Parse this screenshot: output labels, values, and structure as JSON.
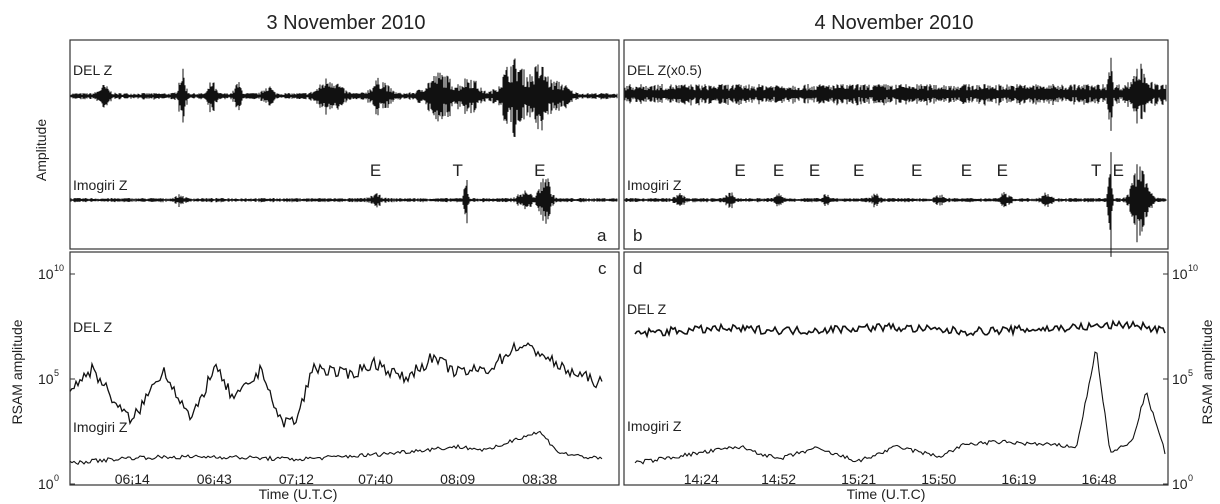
{
  "chart_data": [
    {
      "panel": "a",
      "type": "line",
      "title": "3 November 2010",
      "ylabel": "Amplitude",
      "series": [
        {
          "name": "DEL Z"
        },
        {
          "name": "Imogiri Z"
        }
      ],
      "annotations": [
        {
          "label": "E",
          "time": "07:40"
        },
        {
          "label": "T",
          "time": "08:09"
        },
        {
          "label": "E",
          "time": "08:38"
        }
      ],
      "panel_label": "a"
    },
    {
      "panel": "b",
      "type": "line",
      "title": "4 November 2010",
      "series": [
        {
          "name": "DEL Z(x0.5)"
        },
        {
          "name": "Imogiri Z"
        }
      ],
      "annotations": [
        {
          "label": "E",
          "time": "14:38"
        },
        {
          "label": "E",
          "time": "14:52"
        },
        {
          "label": "E",
          "time": "15:05"
        },
        {
          "label": "E",
          "time": "15:21"
        },
        {
          "label": "E",
          "time": "15:42"
        },
        {
          "label": "E",
          "time": "16:00"
        },
        {
          "label": "E",
          "time": "16:13"
        },
        {
          "label": "T",
          "time": "16:47"
        },
        {
          "label": "E",
          "time": "16:55"
        }
      ],
      "panel_label": "b"
    },
    {
      "panel": "c",
      "type": "line",
      "xlabel": "Time (U.T.C)",
      "ylabel": "RSAM amplitude",
      "yscale": "log",
      "ylim": [
        1,
        10000000000
      ],
      "x_ticks": [
        "06:14",
        "06:43",
        "07:12",
        "07:40",
        "08:09",
        "08:38"
      ],
      "y_ticks": [
        {
          "base": "10",
          "exp": "0",
          "value": 1
        },
        {
          "base": "10",
          "exp": "5",
          "value": 100000
        },
        {
          "base": "10",
          "exp": "10",
          "value": 10000000000
        }
      ],
      "series": [
        {
          "name": "DEL Z",
          "x": [
            "05:52",
            "06:00",
            "06:10",
            "06:14",
            "06:25",
            "06:35",
            "06:43",
            "06:50",
            "07:00",
            "07:06",
            "07:12",
            "07:18",
            "07:30",
            "07:40",
            "07:50",
            "08:00",
            "08:09",
            "08:20",
            "08:30",
            "08:38",
            "08:45",
            "09:00"
          ],
          "values": [
            31000,
            310000,
            3100,
            1000,
            300000,
            1000,
            400000,
            10000,
            300000,
            1000,
            1000,
            400000,
            150000,
            600000,
            100000,
            1000000,
            200000,
            300000,
            4000000,
            2000000,
            350000,
            60000
          ]
        },
        {
          "name": "Imogiri Z",
          "x": [
            "05:52",
            "06:14",
            "06:43",
            "07:12",
            "07:40",
            "08:09",
            "08:20",
            "08:30",
            "08:38",
            "08:45",
            "09:00"
          ],
          "values": [
            10,
            18,
            20,
            15,
            25,
            60,
            40,
            150,
            300,
            30,
            15
          ]
        }
      ],
      "panel_label": "c"
    },
    {
      "panel": "d",
      "type": "line",
      "xlabel": "Time (U.T.C)",
      "ylabel": "RSAM amplitude",
      "yscale": "log",
      "ylim": [
        1,
        10000000000
      ],
      "x_ticks": [
        "14:24",
        "14:52",
        "15:21",
        "15:50",
        "16:19",
        "16:48"
      ],
      "y_ticks": [
        {
          "base": "10",
          "exp": "0",
          "value": 1
        },
        {
          "base": "10",
          "exp": "5",
          "value": 100000
        },
        {
          "base": "10",
          "exp": "10",
          "value": 10000000000
        }
      ],
      "series": [
        {
          "name": "DEL Z",
          "x": [
            "14:00",
            "14:30",
            "15:00",
            "15:30",
            "16:00",
            "16:30",
            "17:00",
            "17:12"
          ],
          "values": [
            15000000,
            25000000,
            20000000,
            30000000,
            18000000,
            25000000,
            40000000,
            20000000
          ]
        },
        {
          "name": "Imogiri Z",
          "x": [
            "14:00",
            "14:38",
            "14:52",
            "15:05",
            "15:21",
            "15:35",
            "15:50",
            "16:00",
            "16:13",
            "16:25",
            "16:40",
            "16:47",
            "16:52",
            "17:00",
            "17:05",
            "17:12"
          ],
          "values": [
            10,
            60,
            15,
            50,
            12,
            60,
            20,
            80,
            100,
            80,
            60,
            3000000,
            30,
            100,
            25000,
            30
          ]
        }
      ],
      "panel_label": "d"
    }
  ]
}
